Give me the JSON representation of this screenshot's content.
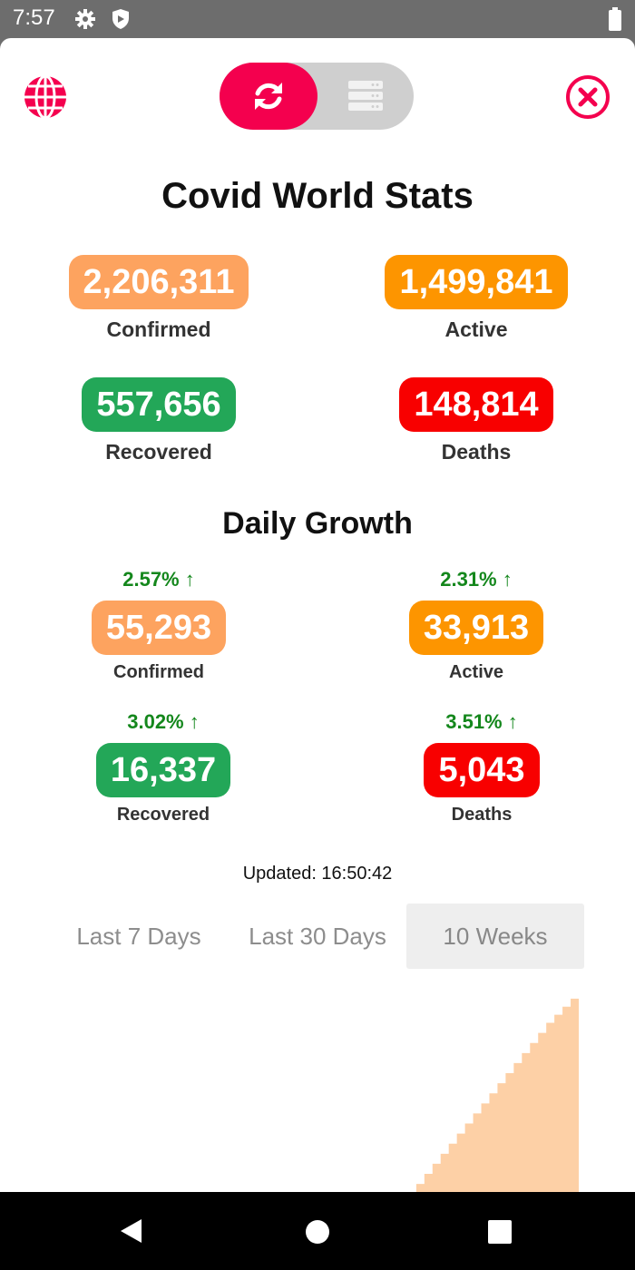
{
  "status_bar": {
    "time": "7:57",
    "icons": [
      "gear-icon",
      "shield-icon",
      "battery-icon"
    ]
  },
  "header": {
    "globe_icon": "globe-icon",
    "refresh_icon": "refresh-icon",
    "list_icon": "server-list-icon",
    "close_icon": "close-circle-icon"
  },
  "title": "Covid World Stats",
  "totals": [
    {
      "label": "Confirmed",
      "value": "2,206,311",
      "color": "#fda35f"
    },
    {
      "label": "Active",
      "value": "1,499,841",
      "color": "#fd9500"
    },
    {
      "label": "Recovered",
      "value": "557,656",
      "color": "#23a758"
    },
    {
      "label": "Deaths",
      "value": "148,814",
      "color": "#f80000"
    }
  ],
  "daily_title": "Daily Growth",
  "daily": [
    {
      "label": "Confirmed",
      "value": "55,293",
      "pct": "2.57%",
      "color": "#fda35f"
    },
    {
      "label": "Active",
      "value": "33,913",
      "pct": "2.31%",
      "color": "#fd9500"
    },
    {
      "label": "Recovered",
      "value": "16,337",
      "pct": "3.02%",
      "color": "#23a758"
    },
    {
      "label": "Deaths",
      "value": "5,043",
      "pct": "3.51%",
      "color": "#f80000"
    }
  ],
  "updated": "Updated: 16:50:42",
  "range_tabs": [
    {
      "label": "Last 7 Days",
      "selected": false
    },
    {
      "label": "Last 30 Days",
      "selected": false
    },
    {
      "label": "10 Weeks",
      "selected": true
    }
  ],
  "chart_data": {
    "type": "area",
    "x": [
      1,
      2,
      3,
      4,
      5,
      6,
      7,
      8,
      9,
      10,
      11,
      12,
      13,
      14,
      15,
      16,
      17,
      18,
      19,
      20,
      21,
      22,
      23,
      24,
      25,
      26,
      27,
      28,
      29,
      30,
      31,
      32,
      33,
      34,
      35,
      36,
      37,
      38,
      39,
      40,
      41,
      42,
      43,
      44,
      45,
      46,
      47,
      48,
      49,
      50,
      51,
      52,
      53,
      54,
      55,
      56,
      57,
      58,
      59,
      60,
      61,
      62,
      63,
      64,
      65,
      66,
      67,
      68,
      69,
      70
    ],
    "values": [
      0,
      0,
      0,
      0,
      0,
      0,
      0,
      0,
      0,
      0,
      0,
      0,
      0,
      0,
      0,
      0,
      0,
      0,
      0,
      0,
      0,
      0,
      0,
      0,
      0,
      0,
      0,
      0,
      0,
      0,
      0,
      0,
      0,
      0,
      0,
      0,
      0,
      0,
      0,
      0,
      0,
      0,
      0,
      0,
      0,
      0,
      0,
      0,
      0,
      0.04,
      0.09,
      0.14,
      0.19,
      0.24,
      0.29,
      0.34,
      0.39,
      0.44,
      0.49,
      0.54,
      0.59,
      0.64,
      0.69,
      0.74,
      0.79,
      0.84,
      0.88,
      0.92,
      0.96,
      1.0
    ],
    "color": "#fdd0a6",
    "xlabel": "",
    "ylabel": ""
  },
  "nav": {
    "back_icon": "back-triangle-icon",
    "home_icon": "home-circle-icon",
    "recent_icon": "recent-square-icon"
  }
}
